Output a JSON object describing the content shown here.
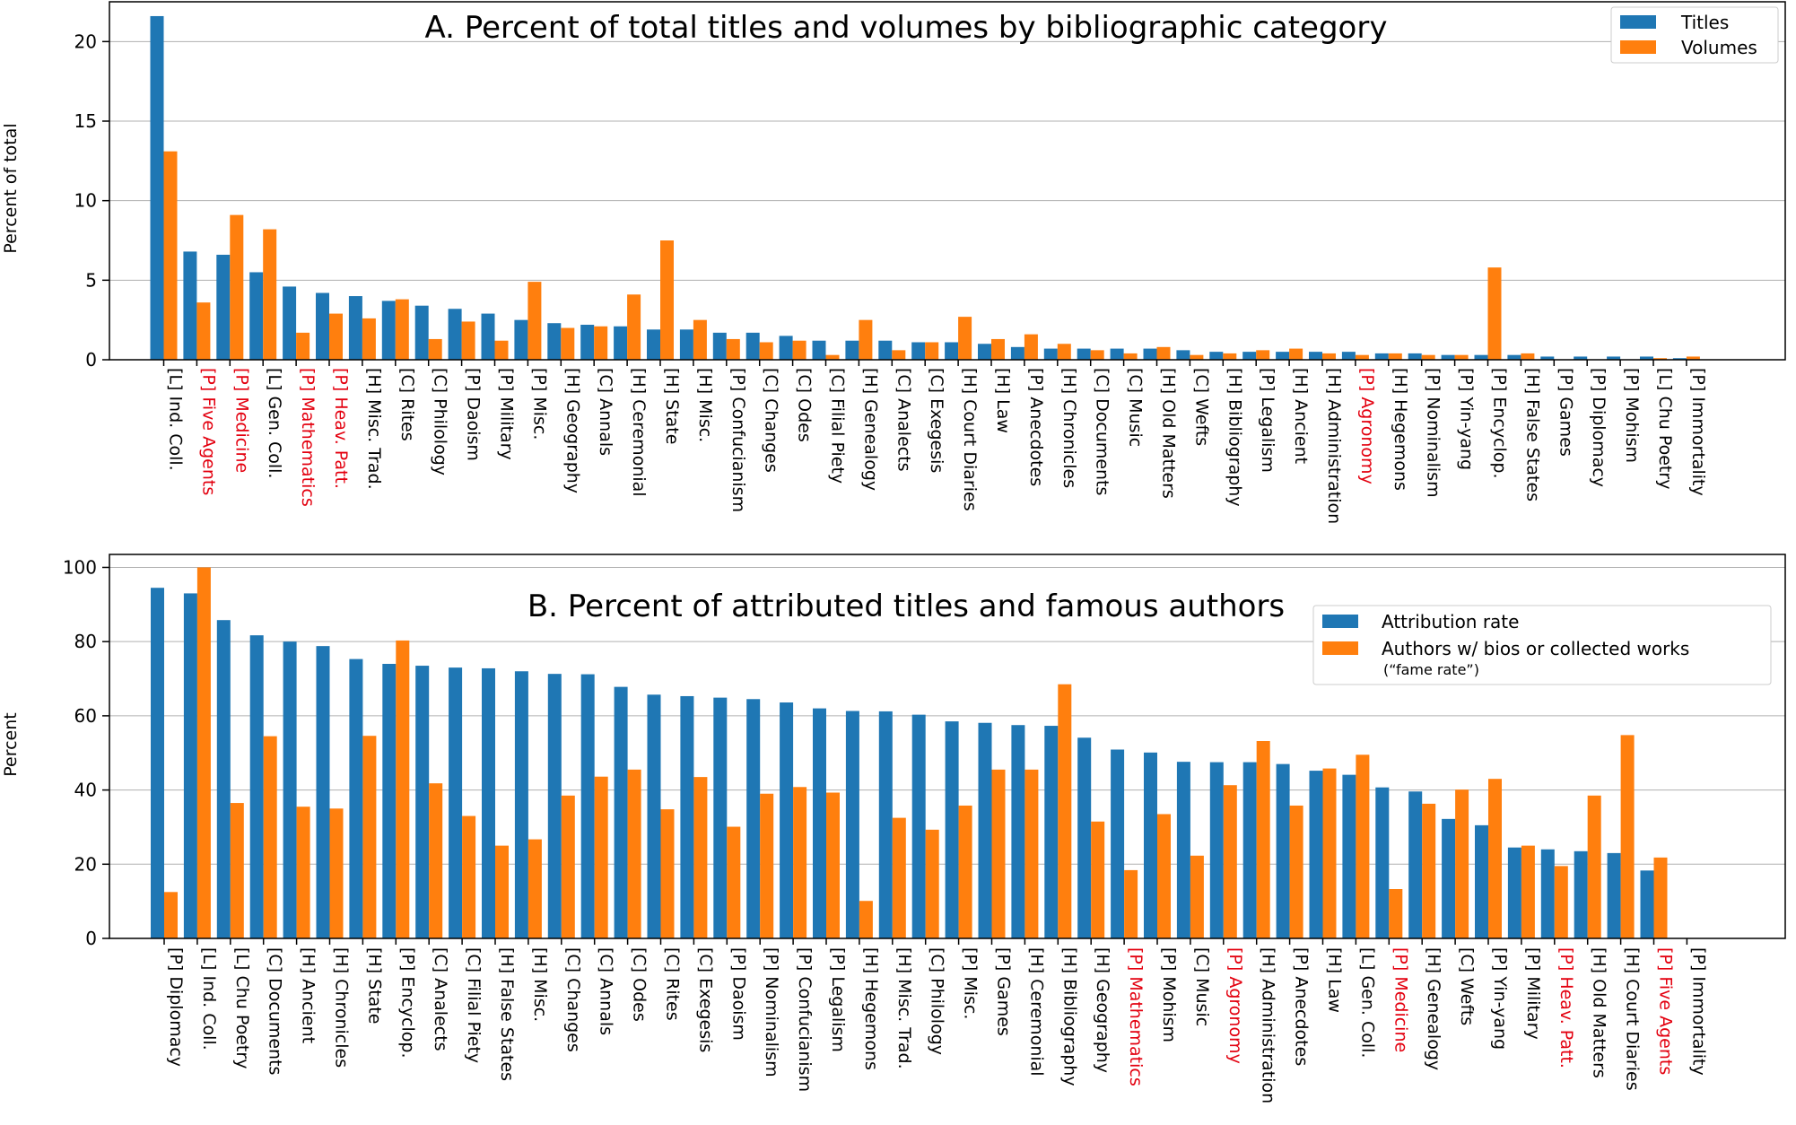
{
  "colors": {
    "blue": "#1f77b4",
    "orange": "#ff7f0e",
    "red": "#e3000f",
    "grid": "#b0b0b0",
    "text": "#000000"
  },
  "chart_data": [
    {
      "type": "bar",
      "title": "A. Percent of total titles and volumes by bibliographic category",
      "ylabel": "Percent of total",
      "xlabel": "",
      "ylim": [
        0,
        22.5
      ],
      "yticks": [
        0,
        5,
        10,
        15,
        20
      ],
      "grid": true,
      "legend_position": "top-right",
      "categories": [
        "[L] Ind. Coll.",
        "[P] Five Agents",
        "[P] Medicine",
        "[L] Gen. Coll.",
        "[P] Mathematics",
        "[P] Heav. Patt.",
        "[H] Misc. Trad.",
        "[C] Rites",
        "[C] Philology",
        "[P] Daoism",
        "[P] Military",
        "[P] Misc.",
        "[H] Geography",
        "[C] Annals",
        "[H] Ceremonial",
        "[H] State",
        "[H] Misc.",
        "[P] Confucianism",
        "[C] Changes",
        "[C] Odes",
        "[C] Filial Piety",
        "[H] Genealogy",
        "[C] Analects",
        "[C] Exegesis",
        "[H] Court Diaries",
        "[H] Law",
        "[P] Anecdotes",
        "[H] Chronicles",
        "[C] Documents",
        "[C] Music",
        "[H] Old Matters",
        "[C] Wefts",
        "[H] Bibliography",
        "[P] Legalism",
        "[H] Ancient",
        "[H] Administration",
        "[P] Agronomy",
        "[H] Hegemons",
        "[P] Nominalism",
        "[P] Yin-yang",
        "[P] Encyclop.",
        "[H] False States",
        "[P] Games",
        "[P] Diplomacy",
        "[P] Mohism",
        "[L] Chu Poetry",
        "[P] Immortality"
      ],
      "highlighted_categories": [
        "[P] Five Agents",
        "[P] Medicine",
        "[P] Mathematics",
        "[P] Heav. Patt.",
        "[P] Agronomy"
      ],
      "series": [
        {
          "name": "Titles",
          "values": [
            21.6,
            6.8,
            6.6,
            5.5,
            4.6,
            4.2,
            4.0,
            3.7,
            3.4,
            3.2,
            2.9,
            2.5,
            2.3,
            2.2,
            2.1,
            1.9,
            1.9,
            1.7,
            1.7,
            1.5,
            1.2,
            1.2,
            1.2,
            1.1,
            1.1,
            1.0,
            0.8,
            0.7,
            0.7,
            0.7,
            0.7,
            0.6,
            0.5,
            0.5,
            0.5,
            0.5,
            0.5,
            0.4,
            0.4,
            0.3,
            0.3,
            0.3,
            0.2,
            0.2,
            0.2,
            0.2,
            0.1
          ]
        },
        {
          "name": "Volumes",
          "values": [
            13.1,
            3.6,
            9.1,
            8.2,
            1.7,
            2.9,
            2.6,
            3.8,
            1.3,
            2.4,
            1.2,
            4.9,
            2.0,
            2.1,
            4.1,
            7.5,
            2.5,
            1.3,
            1.1,
            1.2,
            0.3,
            2.5,
            0.6,
            1.1,
            2.7,
            1.3,
            1.6,
            1.0,
            0.6,
            0.4,
            0.8,
            0.3,
            0.4,
            0.6,
            0.7,
            0.4,
            0.3,
            0.4,
            0.3,
            0.3,
            5.8,
            0.4,
            0.0,
            0.0,
            0.0,
            0.1,
            0.2
          ]
        }
      ]
    },
    {
      "type": "bar",
      "title": "B. Percent of attributed titles and famous authors",
      "ylabel": "Percent",
      "xlabel": "",
      "ylim": [
        0,
        103.5
      ],
      "yticks": [
        0,
        20,
        40,
        60,
        80,
        100
      ],
      "grid": true,
      "legend_position": "top-right",
      "legend_note": "(“fame rate”)",
      "categories": [
        "[P] Diplomacy",
        "[L] Ind. Coll.",
        "[L] Chu Poetry",
        "[C] Documents",
        "[H] Ancient",
        "[H] Chronicles",
        "[H] State",
        "[P] Encyclop.",
        "[C] Analects",
        "[C] Filial Piety",
        "[H] False States",
        "[H] Misc.",
        "[C] Changes",
        "[C] Annals",
        "[C] Odes",
        "[C] Rites",
        "[C] Exegesis",
        "[P] Daoism",
        "[P] Nominalism",
        "[P] Confucianism",
        "[P] Legalism",
        "[H] Hegemons",
        "[H] Misc. Trad.",
        "[C] Philology",
        "[P] Misc.",
        "[P] Games",
        "[H] Ceremonial",
        "[H] Bibliography",
        "[H] Geography",
        "[P] Mathematics",
        "[P] Mohism",
        "[C] Music",
        "[P] Agronomy",
        "[H] Administration",
        "[P] Anecdotes",
        "[H] Law",
        "[L] Gen. Coll.",
        "[P] Medicine",
        "[H] Genealogy",
        "[C] Wefts",
        "[P] Yin-yang",
        "[P] Military",
        "[P] Heav. Patt.",
        "[H] Old Matters",
        "[H] Court Diaries",
        "[P] Five Agents",
        "[P] Immortality"
      ],
      "highlighted_categories": [
        "[P] Mathematics",
        "[P] Agronomy",
        "[P] Medicine",
        "[P] Heav. Patt.",
        "[P] Five Agents"
      ],
      "series": [
        {
          "name": "Attribution rate",
          "values": [
            94.5,
            93,
            85.8,
            81.7,
            80,
            78.8,
            75.3,
            74,
            73.5,
            73,
            72.8,
            72,
            71.3,
            71.2,
            67.8,
            65.7,
            65.3,
            64.9,
            64.5,
            63.6,
            62,
            61.3,
            61.2,
            60.3,
            58.5,
            58.1,
            57.5,
            57.3,
            54.1,
            50.9,
            50.1,
            47.6,
            47.5,
            47.5,
            47,
            45.2,
            44.1,
            40.7,
            39.6,
            32.2,
            30.5,
            24.5,
            24,
            23.5,
            23,
            18.3,
            0
          ]
        },
        {
          "name": "Authors w/ bios or collected works",
          "values": [
            12.5,
            100,
            36.5,
            54.5,
            35.5,
            35,
            54.6,
            80.3,
            41.8,
            33,
            25,
            26.7,
            38.5,
            43.6,
            45.5,
            34.8,
            43.5,
            30.1,
            39,
            40.8,
            39.3,
            10.1,
            32.5,
            29.3,
            35.8,
            45.5,
            45.5,
            68.5,
            31.5,
            18.4,
            33.5,
            22.3,
            41.3,
            53.2,
            35.8,
            45.8,
            49.5,
            13.3,
            36.3,
            40.1,
            43,
            25,
            19.5,
            38.5,
            54.8,
            21.8,
            0
          ]
        }
      ]
    }
  ]
}
